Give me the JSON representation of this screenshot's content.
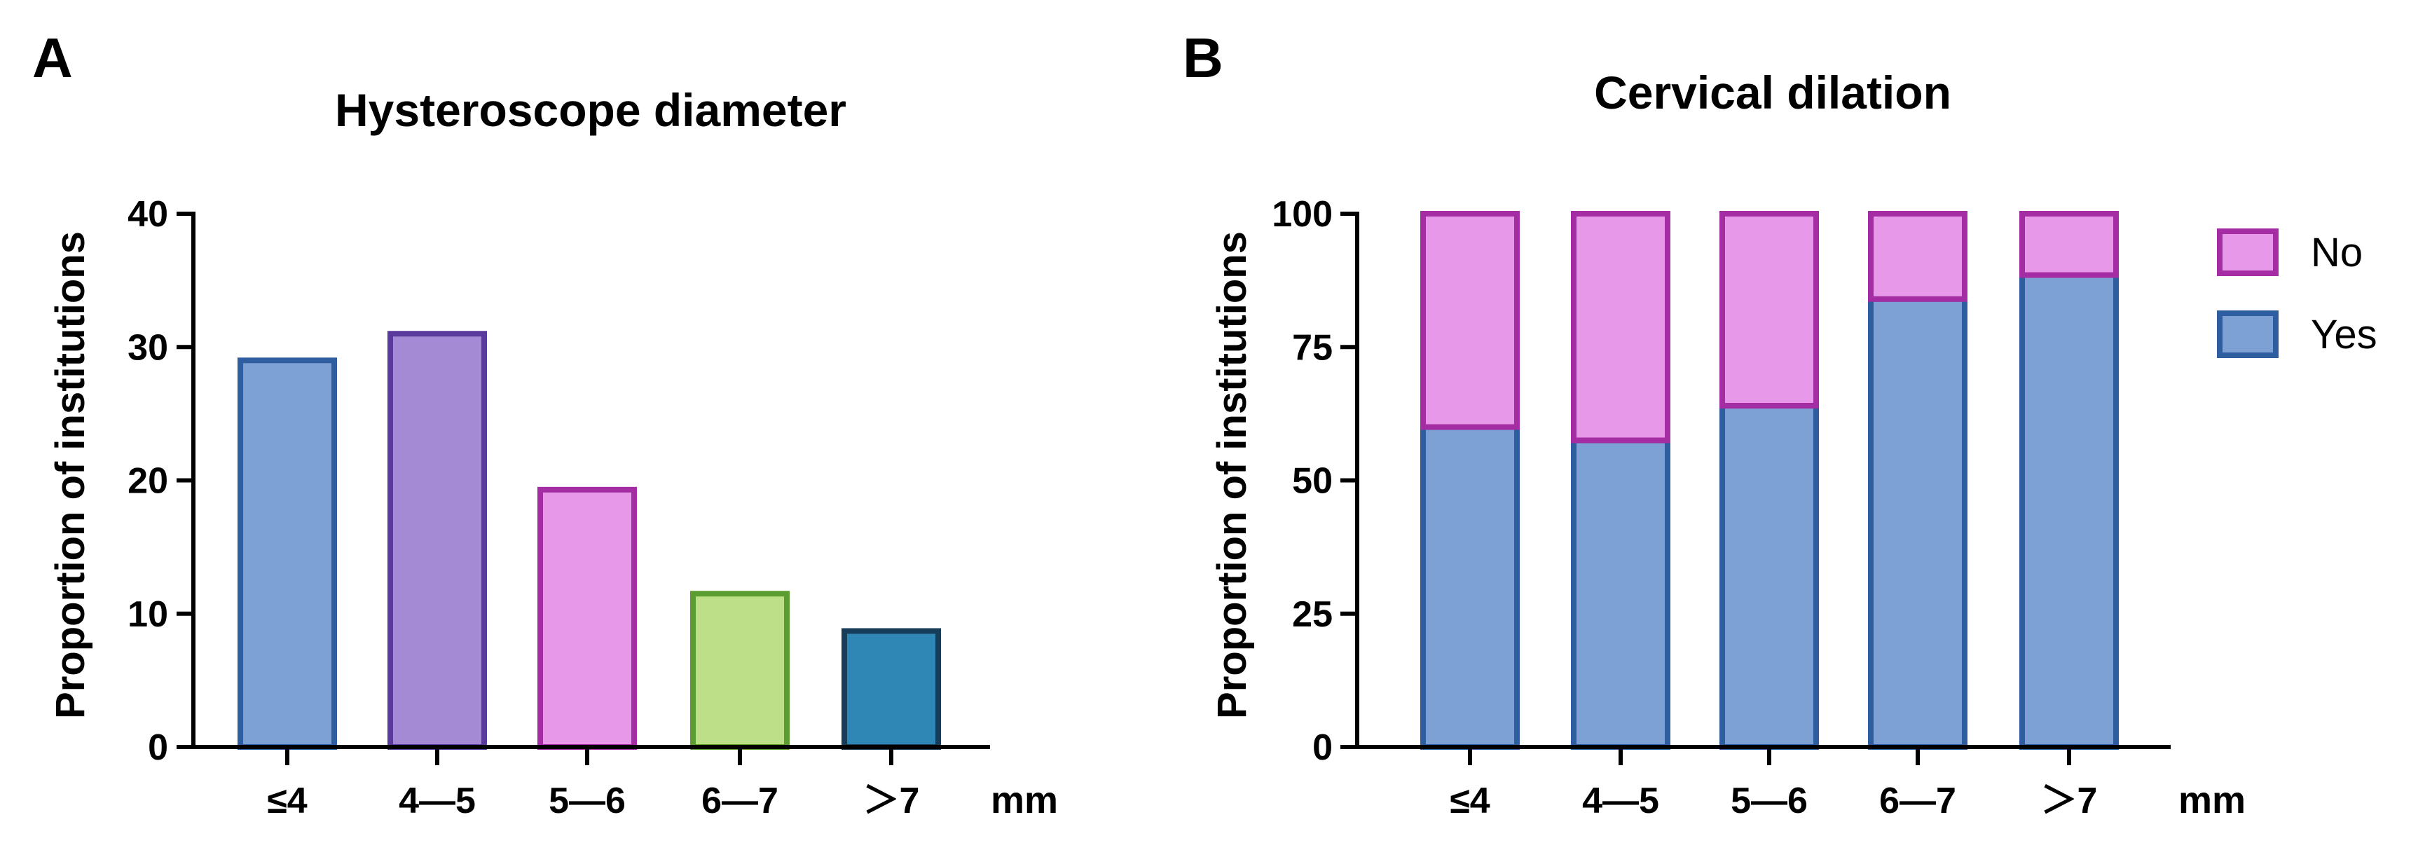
{
  "chart_data": [
    {
      "panel": "A",
      "type": "bar",
      "title": "Hysteroscope diameter",
      "ylabel": "Proportion of institutions",
      "xlabel": "mm",
      "ylim": [
        0,
        40
      ],
      "yticks": [
        0,
        10,
        20,
        30,
        40
      ],
      "categories": [
        "≤4",
        "4—5",
        "5—6",
        "6—7",
        "＞7"
      ],
      "values": [
        29,
        31,
        19.3,
        11.5,
        8.7
      ],
      "fill_colors": [
        "#7EA1D5",
        "#A48AD4",
        "#E898E8",
        "#BCDF88",
        "#2E87B4"
      ],
      "edge_colors": [
        "#2E5DA0",
        "#5B3A9E",
        "#A52DA3",
        "#5B9D30",
        "#173D58"
      ]
    },
    {
      "panel": "B",
      "type": "bar",
      "stacked": true,
      "title": "Cervical dilation",
      "ylabel": "Proportion of institutions",
      "xlabel": "mm",
      "ylim": [
        0,
        100
      ],
      "yticks": [
        0,
        25,
        50,
        75,
        100
      ],
      "categories": [
        "≤4",
        "4—5",
        "5—6",
        "6—7",
        "＞7"
      ],
      "series": [
        {
          "name": "Yes",
          "values": [
            60,
            57.5,
            64,
            84,
            88.5
          ],
          "fill": "#7EA1D5",
          "edge": "#2E5DA0"
        },
        {
          "name": "No",
          "values": [
            40,
            42.5,
            36,
            16,
            11.5
          ],
          "fill": "#E898E8",
          "edge": "#A52DA3"
        }
      ],
      "legend": {
        "placement": "right",
        "order": [
          "No",
          "Yes"
        ]
      }
    }
  ]
}
